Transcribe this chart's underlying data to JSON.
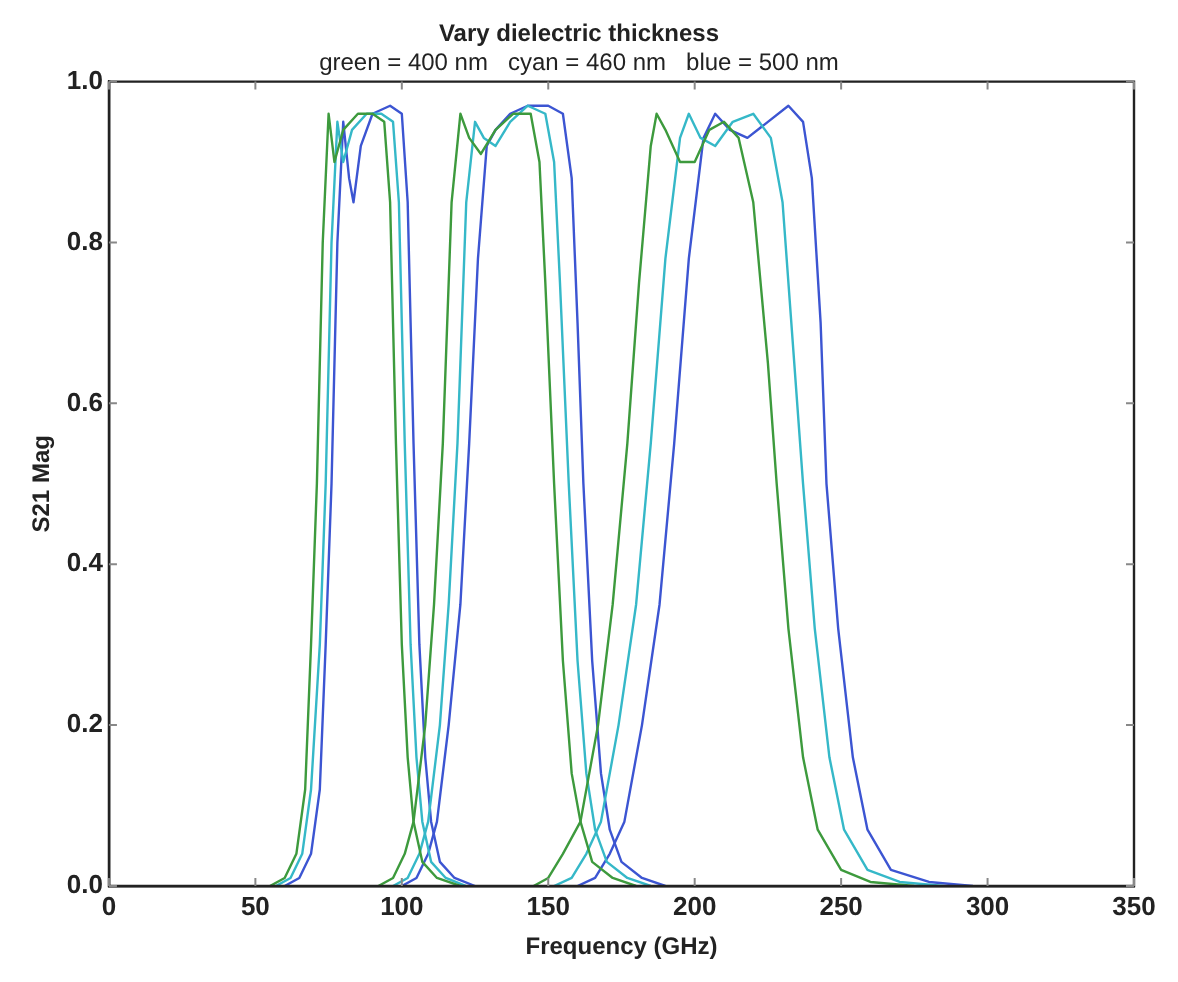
{
  "chart_data": {
    "type": "line",
    "title": "Vary dielectric thickness",
    "subtitle": "green = 400 nm   cyan = 460 nm   blue = 500 nm",
    "xlabel": "Frequency (GHz)",
    "ylabel": "S21 Mag",
    "xlim": [
      0,
      350
    ],
    "xticks": [
      0,
      50,
      100,
      150,
      200,
      250,
      300,
      350
    ],
    "ylim": [
      0,
      1
    ],
    "yticks": [
      {
        "value": 0,
        "label": "0.0"
      },
      {
        "value": 0.2,
        "label": "0.2"
      },
      {
        "value": 0.4,
        "label": "0.4"
      },
      {
        "value": 0.6,
        "label": "0.6"
      },
      {
        "value": 0.8,
        "label": "0.8"
      },
      {
        "value": 1,
        "label": "1.0"
      }
    ],
    "grid": false,
    "legend": false,
    "series": [
      {
        "color": "#3d9a3d",
        "x": [
          55,
          60,
          64,
          67,
          69,
          71,
          73,
          75,
          77,
          80,
          85,
          90,
          94,
          96,
          98,
          100,
          102,
          104,
          107,
          112,
          120
        ],
        "values": [
          0,
          0.01,
          0.04,
          0.12,
          0.3,
          0.5,
          0.8,
          0.96,
          0.9,
          0.94,
          0.96,
          0.96,
          0.95,
          0.85,
          0.55,
          0.3,
          0.16,
          0.08,
          0.03,
          0.01,
          0
        ]
      },
      {
        "color": "#3d9a3d",
        "x": [
          92,
          97,
          101,
          104,
          108,
          111,
          114,
          117,
          120,
          123,
          127,
          132,
          138,
          144,
          147,
          149,
          152,
          155,
          158,
          161,
          165,
          172,
          180
        ],
        "values": [
          0,
          0.01,
          0.04,
          0.08,
          0.2,
          0.35,
          0.55,
          0.85,
          0.96,
          0.93,
          0.91,
          0.94,
          0.96,
          0.96,
          0.9,
          0.75,
          0.5,
          0.28,
          0.14,
          0.08,
          0.03,
          0.01,
          0
        ]
      },
      {
        "color": "#3d9a3d",
        "x": [
          145,
          150,
          155,
          161,
          167,
          172,
          177,
          181,
          185,
          187,
          190,
          195,
          200,
          205,
          210,
          215,
          220,
          225,
          228,
          232,
          237,
          242,
          250,
          260,
          275
        ],
        "values": [
          0,
          0.01,
          0.04,
          0.08,
          0.2,
          0.35,
          0.55,
          0.75,
          0.92,
          0.96,
          0.94,
          0.9,
          0.9,
          0.94,
          0.95,
          0.93,
          0.85,
          0.65,
          0.5,
          0.32,
          0.16,
          0.07,
          0.02,
          0.005,
          0
        ]
      },
      {
        "color": "#35b8c8",
        "x": [
          57,
          62,
          66,
          69,
          72,
          74,
          76,
          78,
          80,
          83,
          88,
          93,
          97,
          99,
          101,
          103,
          105,
          107,
          110,
          115,
          122
        ],
        "values": [
          0,
          0.01,
          0.04,
          0.12,
          0.3,
          0.5,
          0.8,
          0.95,
          0.9,
          0.94,
          0.96,
          0.96,
          0.95,
          0.85,
          0.55,
          0.3,
          0.16,
          0.08,
          0.03,
          0.01,
          0
        ]
      },
      {
        "color": "#35b8c8",
        "x": [
          97,
          102,
          106,
          109,
          113,
          116,
          119,
          122,
          125,
          128,
          132,
          137,
          143,
          149,
          152,
          154,
          157,
          160,
          163,
          166,
          170,
          177,
          185
        ],
        "values": [
          0,
          0.01,
          0.04,
          0.08,
          0.2,
          0.35,
          0.55,
          0.85,
          0.95,
          0.93,
          0.92,
          0.95,
          0.97,
          0.96,
          0.9,
          0.75,
          0.5,
          0.28,
          0.14,
          0.07,
          0.03,
          0.01,
          0
        ]
      },
      {
        "color": "#35b8c8",
        "x": [
          152,
          158,
          163,
          168,
          174,
          180,
          185,
          190,
          195,
          198,
          202,
          207,
          213,
          220,
          226,
          230,
          234,
          237,
          241,
          246,
          251,
          259,
          270,
          285
        ],
        "values": [
          0,
          0.01,
          0.04,
          0.08,
          0.2,
          0.35,
          0.55,
          0.78,
          0.93,
          0.96,
          0.93,
          0.92,
          0.95,
          0.96,
          0.93,
          0.85,
          0.65,
          0.5,
          0.32,
          0.16,
          0.07,
          0.02,
          0.005,
          0
        ]
      },
      {
        "color": "#3c55d2",
        "x": [
          60,
          65,
          69,
          72,
          74,
          76,
          78,
          80,
          82,
          83.5,
          86,
          90,
          96,
          100,
          102,
          104,
          106,
          108,
          110,
          113,
          118,
          125
        ],
        "values": [
          0,
          0.01,
          0.04,
          0.12,
          0.3,
          0.5,
          0.8,
          0.95,
          0.88,
          0.85,
          0.92,
          0.96,
          0.97,
          0.96,
          0.85,
          0.55,
          0.3,
          0.16,
          0.08,
          0.03,
          0.01,
          0
        ]
      },
      {
        "color": "#3c55d2",
        "x": [
          100,
          105,
          109,
          112,
          116,
          120,
          123,
          126,
          129,
          132,
          137,
          143,
          150,
          155,
          158,
          160,
          162,
          165,
          168,
          171,
          175,
          182,
          190
        ],
        "values": [
          0,
          0.01,
          0.04,
          0.08,
          0.2,
          0.35,
          0.55,
          0.78,
          0.92,
          0.94,
          0.96,
          0.97,
          0.97,
          0.96,
          0.88,
          0.7,
          0.5,
          0.28,
          0.14,
          0.07,
          0.03,
          0.01,
          0
        ]
      },
      {
        "color": "#3c55d2",
        "x": [
          160,
          166,
          171,
          176,
          182,
          188,
          193,
          198,
          203,
          207,
          212,
          218,
          225,
          232,
          237,
          240,
          243,
          245,
          249,
          254,
          259,
          267,
          280,
          295
        ],
        "values": [
          0,
          0.01,
          0.04,
          0.08,
          0.2,
          0.35,
          0.55,
          0.78,
          0.93,
          0.96,
          0.94,
          0.93,
          0.95,
          0.97,
          0.95,
          0.88,
          0.7,
          0.5,
          0.32,
          0.16,
          0.07,
          0.02,
          0.005,
          0
        ]
      }
    ]
  }
}
